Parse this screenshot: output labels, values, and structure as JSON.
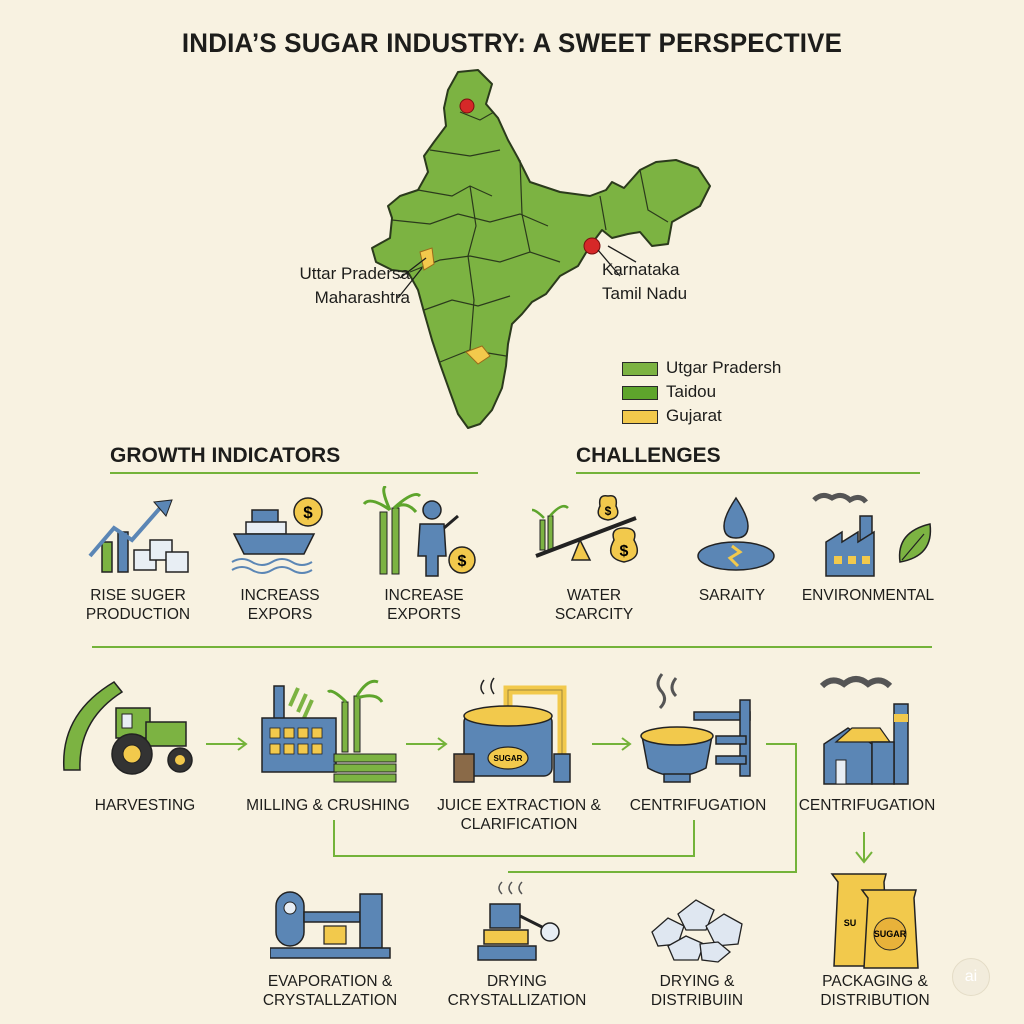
{
  "title": "INDIA’S SUGAR INDUSTRY: A SWEET PERSPECTIVE",
  "colors": {
    "background": "#f8f2e1",
    "map_green": "#7cb342",
    "accent_green": "#74b33a",
    "steel_blue": "#5b86b5",
    "sugar_yellow": "#f2c94c",
    "marker_red": "#d62828"
  },
  "map": {
    "callouts_left": [
      "Uttar Pradersa",
      "Maharashtra"
    ],
    "callouts_right": [
      "Karnataka",
      "Tamil Nadu"
    ],
    "legend": [
      {
        "label": "Utgar Pradersh",
        "color": "#7cb342"
      },
      {
        "label": "Taidou",
        "color": "#5ea52c"
      },
      {
        "label": "Gujarat",
        "color": "#f2c94c"
      }
    ]
  },
  "growth": {
    "title": "GROWTH INDICATORS",
    "items": [
      {
        "label": "RISE SUGER\nPRODUCTION",
        "icon": "growth-chart-icon"
      },
      {
        "label": "INCREASS\nEXPORS",
        "icon": "cargo-ship-icon"
      },
      {
        "label": "INCREASE\nEXPORTS",
        "icon": "farmer-cane-icon"
      }
    ]
  },
  "challenges": {
    "title": "CHALLENGES",
    "items": [
      {
        "label": "WATER\nSCARCITY",
        "icon": "price-seesaw-icon"
      },
      {
        "label": "SARAITY",
        "icon": "water-drop-icon"
      },
      {
        "label": "ENVIRONMENTAL",
        "icon": "factory-leaf-icon"
      }
    ]
  },
  "process": {
    "row1": [
      {
        "label": "HARVESTING",
        "icon": "tractor-icon"
      },
      {
        "label": "MILLING & CRUSHING",
        "icon": "mill-icon"
      },
      {
        "label": "JUICE EXTRACTION &\nCLARIFICATION",
        "icon": "juice-tank-icon"
      },
      {
        "label": "CENTRIFUGATION",
        "icon": "centrifuge-icon"
      },
      {
        "label": "CENTRIFUGATION",
        "icon": "refinery-icon"
      }
    ],
    "row2": [
      {
        "label": "EVAPORATION &\nCRYSTALLZATION",
        "icon": "evaporator-icon"
      },
      {
        "label": "DRYING\nCRYSTALLIZATION",
        "icon": "dryer-icon"
      },
      {
        "label": "DRYING &\nDISTRIBUIIN",
        "icon": "sugar-crystals-icon"
      },
      {
        "label": "PACKAGING &\nDISTRIBUTION",
        "icon": "sugar-bags-icon"
      }
    ],
    "tank_label": "SUGAR",
    "bag_label": "SUGAR",
    "bag_back_label": "SU"
  },
  "watermark": "ai"
}
